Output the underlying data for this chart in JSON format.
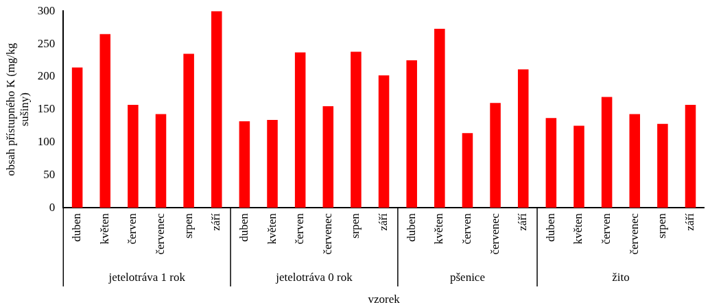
{
  "chart_data": {
    "type": "bar",
    "xlabel": "vzorek",
    "ylabel": "obsah přístupného K (mg/kg sušiny)",
    "categories": [
      "duben",
      "květen",
      "červen",
      "červenec",
      "srpen",
      "září",
      "duben",
      "květen",
      "červen",
      "červenec",
      "srpen",
      "září",
      "duben",
      "květen",
      "červen",
      "červenec",
      "září",
      "duben",
      "květen",
      "červen",
      "červenec",
      "srpen",
      "září"
    ],
    "values": [
      214,
      265,
      157,
      143,
      235,
      300,
      132,
      134,
      237,
      155,
      238,
      202,
      225,
      273,
      114,
      160,
      211,
      137,
      125,
      169,
      143,
      128,
      157
    ],
    "color": "#ff0000",
    "ylim": [
      0,
      300
    ],
    "yticks": [
      0,
      50,
      100,
      150,
      200,
      250,
      300
    ],
    "grid": false,
    "legend": false,
    "annotations": [
      "jetelotráva 1 rok",
      "jetelotráva 0 rok",
      "pšenice",
      "žito"
    ]
  }
}
